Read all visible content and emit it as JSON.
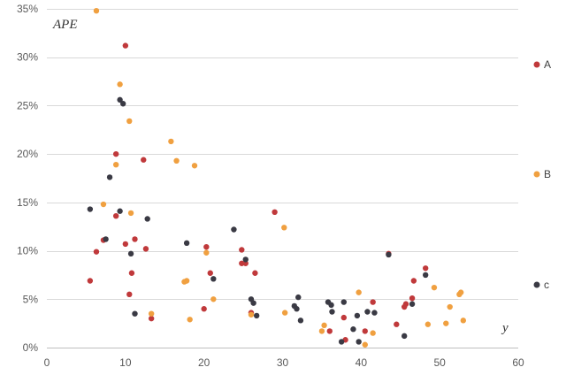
{
  "chart_data": {
    "type": "scatter",
    "title": "",
    "xlabel": "y",
    "ylabel": "APE",
    "xlim": [
      0,
      60
    ],
    "ylim": [
      0,
      0.35
    ],
    "x_ticks": [
      0,
      10,
      20,
      30,
      40,
      50,
      60
    ],
    "y_ticks": [
      0,
      0.05,
      0.1,
      0.15,
      0.2,
      0.25,
      0.3,
      0.35
    ],
    "x_tick_labels": [
      "0",
      "10",
      "20",
      "30",
      "40",
      "50",
      "60"
    ],
    "y_tick_labels": [
      "0%",
      "5%",
      "10%",
      "15%",
      "20%",
      "25%",
      "30%",
      "35%"
    ],
    "grid": "horizontal",
    "legend": "right",
    "series": [
      {
        "name": "A",
        "color": "#c0393b",
        "points": [
          [
            5.5,
            0.069
          ],
          [
            6.3,
            0.099
          ],
          [
            7.2,
            0.111
          ],
          [
            8.8,
            0.2
          ],
          [
            8.8,
            0.136
          ],
          [
            10.0,
            0.312
          ],
          [
            10.0,
            0.107
          ],
          [
            10.5,
            0.055
          ],
          [
            10.8,
            0.077
          ],
          [
            11.2,
            0.112
          ],
          [
            12.3,
            0.194
          ],
          [
            12.6,
            0.102
          ],
          [
            13.3,
            0.03
          ],
          [
            20.0,
            0.04
          ],
          [
            20.3,
            0.104
          ],
          [
            20.8,
            0.077
          ],
          [
            24.8,
            0.101
          ],
          [
            24.8,
            0.087
          ],
          [
            25.3,
            0.087
          ],
          [
            26.5,
            0.077
          ],
          [
            29.0,
            0.14
          ],
          [
            36.0,
            0.017
          ],
          [
            37.8,
            0.031
          ],
          [
            38.0,
            0.008
          ],
          [
            40.5,
            0.017
          ],
          [
            41.5,
            0.047
          ],
          [
            43.5,
            0.097
          ],
          [
            44.5,
            0.024
          ],
          [
            45.5,
            0.042
          ],
          [
            45.7,
            0.045
          ],
          [
            46.5,
            0.051
          ],
          [
            46.7,
            0.069
          ],
          [
            48.2,
            0.082
          ],
          [
            26.0,
            0.036
          ]
        ]
      },
      {
        "name": "B",
        "color": "#f0a040",
        "points": [
          [
            6.3,
            0.348
          ],
          [
            7.2,
            0.148
          ],
          [
            8.8,
            0.189
          ],
          [
            9.3,
            0.272
          ],
          [
            10.5,
            0.234
          ],
          [
            10.7,
            0.139
          ],
          [
            13.3,
            0.035
          ],
          [
            15.8,
            0.213
          ],
          [
            16.5,
            0.193
          ],
          [
            17.5,
            0.068
          ],
          [
            17.8,
            0.069
          ],
          [
            18.2,
            0.029
          ],
          [
            18.8,
            0.188
          ],
          [
            20.3,
            0.098
          ],
          [
            21.2,
            0.05
          ],
          [
            26.0,
            0.034
          ],
          [
            30.2,
            0.124
          ],
          [
            30.3,
            0.036
          ],
          [
            35.0,
            0.017
          ],
          [
            35.3,
            0.023
          ],
          [
            39.7,
            0.057
          ],
          [
            40.5,
            0.003
          ],
          [
            41.5,
            0.015
          ],
          [
            48.5,
            0.024
          ],
          [
            49.3,
            0.062
          ],
          [
            50.8,
            0.025
          ],
          [
            51.3,
            0.042
          ],
          [
            52.5,
            0.055
          ],
          [
            52.7,
            0.057
          ],
          [
            53.0,
            0.028
          ]
        ]
      },
      {
        "name": "c",
        "color": "#3a3a44",
        "points": [
          [
            5.5,
            0.143
          ],
          [
            7.5,
            0.112
          ],
          [
            8.0,
            0.176
          ],
          [
            9.3,
            0.256
          ],
          [
            9.3,
            0.141
          ],
          [
            9.7,
            0.252
          ],
          [
            10.7,
            0.097
          ],
          [
            11.2,
            0.035
          ],
          [
            12.8,
            0.133
          ],
          [
            17.8,
            0.108
          ],
          [
            21.2,
            0.071
          ],
          [
            23.8,
            0.122
          ],
          [
            25.3,
            0.091
          ],
          [
            26.0,
            0.05
          ],
          [
            26.3,
            0.046
          ],
          [
            26.7,
            0.033
          ],
          [
            31.5,
            0.043
          ],
          [
            31.8,
            0.04
          ],
          [
            32.0,
            0.052
          ],
          [
            32.3,
            0.028
          ],
          [
            35.8,
            0.047
          ],
          [
            36.2,
            0.044
          ],
          [
            36.3,
            0.037
          ],
          [
            37.5,
            0.006
          ],
          [
            37.8,
            0.047
          ],
          [
            39.0,
            0.019
          ],
          [
            39.5,
            0.033
          ],
          [
            39.7,
            0.006
          ],
          [
            40.8,
            0.037
          ],
          [
            41.7,
            0.036
          ],
          [
            43.5,
            0.096
          ],
          [
            45.5,
            0.012
          ],
          [
            46.5,
            0.045
          ],
          [
            48.2,
            0.075
          ]
        ]
      }
    ]
  }
}
